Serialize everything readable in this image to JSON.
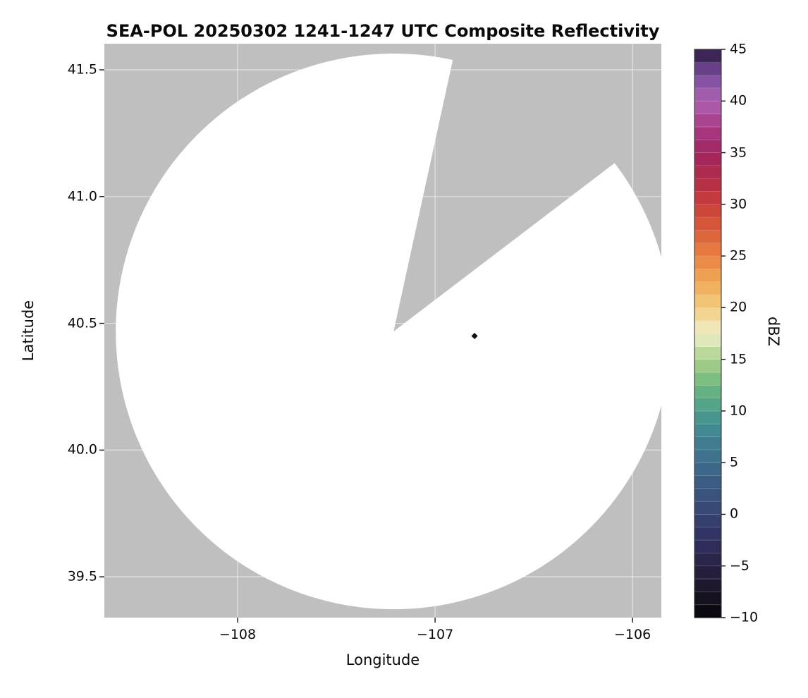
{
  "chart_data": {
    "type": "heatmap",
    "title": "SEA-POL 20250302 1241-1247 UTC Composite Reflectivity",
    "xlabel": "Longitude",
    "ylabel": "Latitude",
    "xlim": [
      -108.675,
      -105.854
    ],
    "ylim": [
      39.339,
      41.603
    ],
    "xticks": [
      {
        "value": -108,
        "label": "−108"
      },
      {
        "value": -107,
        "label": "−107"
      },
      {
        "value": -106,
        "label": "−106"
      }
    ],
    "yticks": [
      {
        "value": 39.5,
        "label": "39.5"
      },
      {
        "value": 40.0,
        "label": "40.0"
      },
      {
        "value": 40.5,
        "label": "40.5"
      },
      {
        "value": 41.0,
        "label": "41.0"
      },
      {
        "value": 41.5,
        "label": "41.5"
      }
    ],
    "grid": {
      "show": true,
      "color": "rgba(255,255,255,0.55)"
    },
    "nodata_color": "#bfbfbf",
    "coverage_color": "#ffffff",
    "radar": {
      "center_lon": -107.21,
      "center_lat": 40.468,
      "coverage_radius_deg_lat": 1.096,
      "blocked_sector_azimuth_deg": [
        12.3,
        52.7
      ]
    },
    "echoes": [
      {
        "lon": -106.8,
        "lat": 40.45,
        "dbz_approx": -8,
        "color": "#101016"
      }
    ],
    "colorbar": {
      "label": "dBZ",
      "min": -10,
      "max": 45,
      "segment_step_dbz": 1.25,
      "ticks": [
        {
          "value": 45,
          "label": "45"
        },
        {
          "value": 40,
          "label": "40"
        },
        {
          "value": 35,
          "label": "35"
        },
        {
          "value": 30,
          "label": "30"
        },
        {
          "value": 25,
          "label": "25"
        },
        {
          "value": 20,
          "label": "20"
        },
        {
          "value": 15,
          "label": "15"
        },
        {
          "value": 10,
          "label": "10"
        },
        {
          "value": 5,
          "label": "5"
        },
        {
          "value": 0,
          "label": "0"
        },
        {
          "value": -5,
          "label": "−5"
        },
        {
          "value": -10,
          "label": "−10"
        }
      ],
      "colormap_stops": [
        {
          "value": -10,
          "color": "#070709"
        },
        {
          "value": -7.5,
          "color": "#1a1426"
        },
        {
          "value": -5,
          "color": "#282145"
        },
        {
          "value": -2.5,
          "color": "#30305e"
        },
        {
          "value": 0,
          "color": "#364470"
        },
        {
          "value": 2.5,
          "color": "#3a5880"
        },
        {
          "value": 5,
          "color": "#3d6c8b"
        },
        {
          "value": 7.5,
          "color": "#418292"
        },
        {
          "value": 10,
          "color": "#4a9d8d"
        },
        {
          "value": 12.5,
          "color": "#6fb87e"
        },
        {
          "value": 15,
          "color": "#a8d089"
        },
        {
          "value": 17.5,
          "color": "#f1eecb"
        },
        {
          "value": 20,
          "color": "#f2cd7c"
        },
        {
          "value": 22.5,
          "color": "#efa857"
        },
        {
          "value": 25,
          "color": "#e88243"
        },
        {
          "value": 27.5,
          "color": "#da5c38"
        },
        {
          "value": 30,
          "color": "#c73e3a"
        },
        {
          "value": 32.5,
          "color": "#b12d49"
        },
        {
          "value": 35,
          "color": "#a1255e"
        },
        {
          "value": 37.5,
          "color": "#a93a86"
        },
        {
          "value": 40,
          "color": "#ab62b0"
        },
        {
          "value": 42.5,
          "color": "#7b4d9f"
        },
        {
          "value": 45,
          "color": "#2a1840"
        }
      ]
    }
  }
}
